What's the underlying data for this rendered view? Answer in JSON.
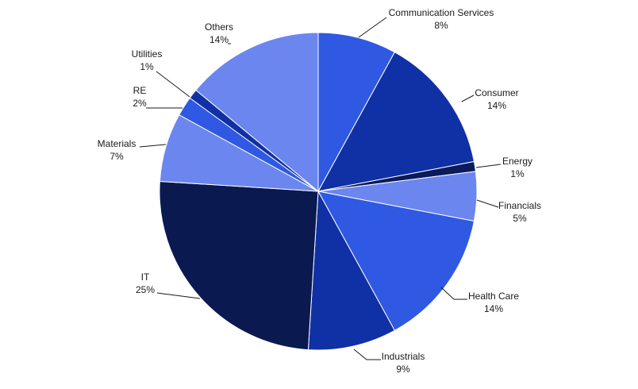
{
  "chart_data": {
    "type": "pie",
    "title": "",
    "legend": "none",
    "slices": [
      {
        "label": "Communication Services",
        "value": 8,
        "percent_label": "8%",
        "color": "#2f59e3"
      },
      {
        "label": "Consumer",
        "value": 14,
        "percent_label": "14%",
        "color": "#1030a6"
      },
      {
        "label": "Energy",
        "value": 1,
        "percent_label": "1%",
        "color": "#0a1a5c"
      },
      {
        "label": "Financials",
        "value": 5,
        "percent_label": "5%",
        "color": "#6b86ef"
      },
      {
        "label": "Health Care",
        "value": 14,
        "percent_label": "14%",
        "color": "#2f59e3"
      },
      {
        "label": "Industrials",
        "value": 9,
        "percent_label": "9%",
        "color": "#1030a6"
      },
      {
        "label": "IT",
        "value": 25,
        "percent_label": "25%",
        "color": "#0a1a50"
      },
      {
        "label": "Materials",
        "value": 7,
        "percent_label": "7%",
        "color": "#6b86ef"
      },
      {
        "label": "RE",
        "value": 2,
        "percent_label": "2%",
        "color": "#2f59e3"
      },
      {
        "label": "Utilities",
        "value": 1,
        "percent_label": "1%",
        "color": "#1030a6"
      },
      {
        "label": "Others",
        "value": 14,
        "percent_label": "14%",
        "color": "#6b86ef"
      }
    ]
  }
}
